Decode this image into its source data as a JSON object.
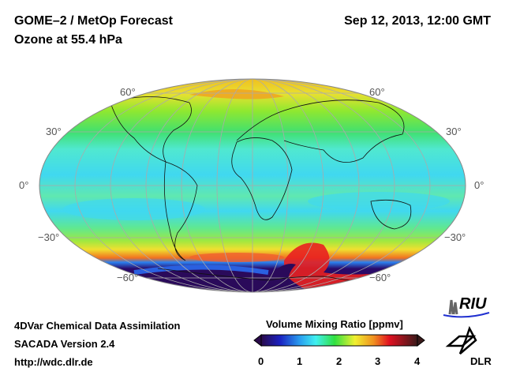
{
  "header": {
    "title": "GOME–2 / MetOp Forecast",
    "subtitle": "Ozone at 55.4 hPa",
    "datetime": "Sep 12, 2013, 12:00 GMT"
  },
  "map": {
    "projection": "global ellipse (Mollweide-like)",
    "lat_labels": {
      "n60": "60°",
      "n30": "30°",
      "eq": "0°",
      "s30": "−30°",
      "s60": "−60°"
    }
  },
  "footer": {
    "line1": "4DVar Chemical Data Assimilation",
    "line2": "SACADA Version 2.4",
    "url": "http://wdc.dlr.de"
  },
  "colorbar": {
    "title": "Volume Mixing Ratio [ppmv]",
    "ticks": [
      "0",
      "1",
      "2",
      "3",
      "4"
    ],
    "range": [
      0,
      4
    ],
    "colors": [
      "#2a0a4a",
      "#1a20c0",
      "#2aa0f0",
      "#40f0f0",
      "#30e040",
      "#f0f030",
      "#f09020",
      "#e01020",
      "#3a1a1a"
    ]
  },
  "logos": {
    "riu": "RIU",
    "dlr": "DLR"
  }
}
